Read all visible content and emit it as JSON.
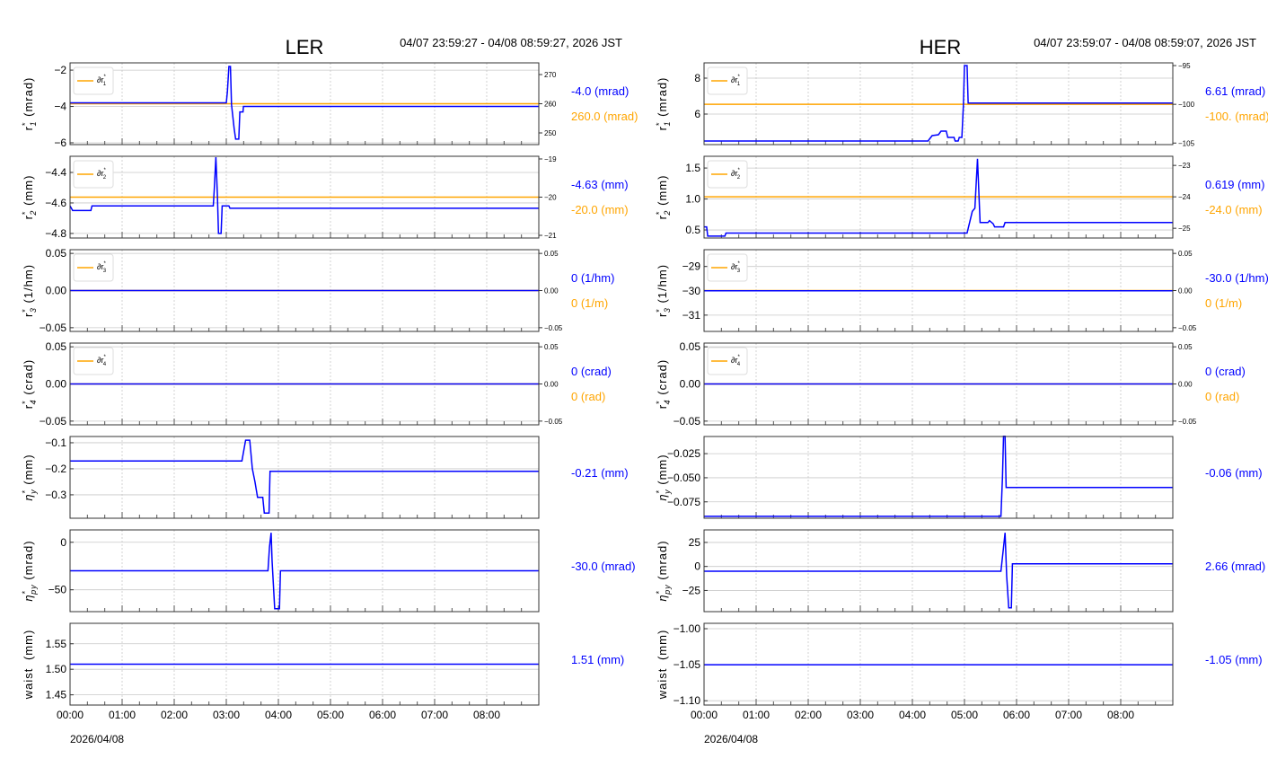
{
  "colors": {
    "measured": "#0000ff",
    "reference": "#ffa500",
    "grid": "#c8c8c8",
    "axis": "#333333"
  },
  "x_axis": {
    "unit": "hours",
    "xlim": [
      0,
      9
    ],
    "ticks": [
      0,
      1,
      2,
      3,
      4,
      5,
      6,
      7,
      8
    ],
    "tick_labels": [
      "00:00",
      "01:00",
      "02:00",
      "03:00",
      "04:00",
      "05:00",
      "06:00",
      "07:00",
      "08:00"
    ],
    "date_label": "2026/04/08"
  },
  "rings": [
    {
      "title": "LER",
      "range": "04/07 23:59:27 - 04/08 08:59:27, 2026 JST"
    },
    {
      "title": "HER",
      "range": "04/07 23:59:07 - 04/08 08:59:07, 2026 JST"
    }
  ],
  "chart_data": [
    {
      "ring": "LER",
      "type": "line",
      "ylabel": {
        "base": "r",
        "sup": "*",
        "sub": "1",
        "unit": "(mrad)"
      },
      "ylim": [
        -6.1,
        -1.6
      ],
      "yticks": [
        -6,
        -4,
        -2
      ],
      "ytick_labels": [
        "−6",
        "−4",
        "−2"
      ],
      "series": [
        [
          0,
          -3.8
        ],
        [
          3.0,
          -3.8
        ],
        [
          3.02,
          -3.2
        ],
        [
          3.05,
          -1.8
        ],
        [
          3.08,
          -1.8
        ],
        [
          3.1,
          -3.9
        ],
        [
          3.15,
          -5.2
        ],
        [
          3.18,
          -5.8
        ],
        [
          3.24,
          -5.8
        ],
        [
          3.26,
          -4.3
        ],
        [
          3.32,
          -4.3
        ],
        [
          3.33,
          -4.0
        ],
        [
          9,
          -4.0
        ]
      ],
      "reference": {
        "name": "∂r",
        "sub": "1",
        "value": 260,
        "ylim": [
          246,
          274
        ],
        "yticks": [
          250,
          260,
          270
        ]
      },
      "value_label": "-4.0 (mrad)",
      "ref_label": "260.0 (mrad)"
    },
    {
      "ring": "LER",
      "type": "line",
      "ylabel": {
        "base": "r",
        "sup": "*",
        "sub": "2",
        "unit": "(mm)"
      },
      "ylim": [
        -4.83,
        -4.294
      ],
      "yticks": [
        -4.8,
        -4.6,
        -4.4
      ],
      "ytick_labels": [
        "−4.8",
        "−4.6",
        "−4.4"
      ],
      "series": [
        [
          0,
          -4.62
        ],
        [
          0.05,
          -4.65
        ],
        [
          0.4,
          -4.65
        ],
        [
          0.42,
          -4.62
        ],
        [
          2.75,
          -4.62
        ],
        [
          2.77,
          -4.5
        ],
        [
          2.8,
          -4.3
        ],
        [
          2.83,
          -4.55
        ],
        [
          2.85,
          -4.8
        ],
        [
          2.9,
          -4.8
        ],
        [
          2.92,
          -4.62
        ],
        [
          3.05,
          -4.62
        ],
        [
          3.07,
          -4.635
        ],
        [
          9,
          -4.635
        ]
      ],
      "reference": {
        "name": "∂r",
        "sub": "2",
        "value": -20,
        "ylim": [
          -21.07,
          -18.93
        ],
        "yticks": [
          -21,
          -20,
          -19
        ]
      },
      "value_label": "-4.63 (mm)",
      "ref_label": "-20.0 (mm)"
    },
    {
      "ring": "LER",
      "type": "line",
      "ylabel": {
        "base": "r",
        "sup": "*",
        "sub": "3",
        "unit": "(1/hm)"
      },
      "ylim": [
        -0.055,
        0.055
      ],
      "yticks": [
        -0.05,
        0,
        0.05
      ],
      "ytick_labels": [
        "−0.05",
        "0.00",
        "0.05"
      ],
      "series": [
        [
          0,
          0
        ],
        [
          9,
          0
        ]
      ],
      "reference": {
        "name": "∂r",
        "sub": "3",
        "value": 0,
        "ylim": [
          -0.055,
          0.055
        ],
        "yticks": [
          -0.05,
          0,
          0.05
        ],
        "ytick_labels": [
          "−0.05",
          "0.00",
          "0.05"
        ]
      },
      "value_label": "0 (1/hm)",
      "ref_label": "0 (1/m)"
    },
    {
      "ring": "LER",
      "type": "line",
      "ylabel": {
        "base": "r",
        "sup": "*",
        "sub": "4",
        "unit": "(crad)"
      },
      "ylim": [
        -0.055,
        0.055
      ],
      "yticks": [
        -0.05,
        0,
        0.05
      ],
      "ytick_labels": [
        "−0.05",
        "0.00",
        "0.05"
      ],
      "series": [
        [
          0,
          0
        ],
        [
          9,
          0
        ]
      ],
      "reference": {
        "name": "∂r",
        "sub": "4",
        "value": 0,
        "ylim": [
          -0.055,
          0.055
        ],
        "yticks": [
          -0.05,
          0,
          0.05
        ],
        "ytick_labels": [
          "−0.05",
          "0.00",
          "0.05"
        ]
      },
      "value_label": "0 (crad)",
      "ref_label": "0 (rad)"
    },
    {
      "ring": "LER",
      "type": "line",
      "ylabel": {
        "base": "η",
        "sup": "*",
        "sub": "y",
        "unit": "(mm)"
      },
      "ylim": [
        -0.39,
        -0.076
      ],
      "yticks": [
        -0.3,
        -0.2,
        -0.1
      ],
      "ytick_labels": [
        "−0.3",
        "−0.2",
        "−0.1"
      ],
      "series": [
        [
          0,
          -0.17
        ],
        [
          3.3,
          -0.17
        ],
        [
          3.37,
          -0.09
        ],
        [
          3.45,
          -0.09
        ],
        [
          3.5,
          -0.2
        ],
        [
          3.55,
          -0.25
        ],
        [
          3.6,
          -0.31
        ],
        [
          3.7,
          -0.31
        ],
        [
          3.73,
          -0.37
        ],
        [
          3.82,
          -0.37
        ],
        [
          3.84,
          -0.21
        ],
        [
          9,
          -0.21
        ]
      ],
      "value_label": "-0.21 (mm)"
    },
    {
      "ring": "LER",
      "type": "line",
      "ylabel": {
        "base": "η",
        "sup": "*",
        "sub": "py",
        "unit": "(mrad)"
      },
      "ylim": [
        -73,
        13
      ],
      "yticks": [
        -50,
        0
      ],
      "ytick_labels": [
        "−50",
        "0"
      ],
      "series": [
        [
          0,
          -30
        ],
        [
          3.8,
          -30
        ],
        [
          3.83,
          -5
        ],
        [
          3.86,
          10
        ],
        [
          3.88,
          -20
        ],
        [
          3.93,
          -70
        ],
        [
          4.02,
          -70
        ],
        [
          4.04,
          -30
        ],
        [
          9,
          -30
        ]
      ],
      "value_label": "-30.0 (mrad)"
    },
    {
      "ring": "LER",
      "type": "line",
      "ylabel": {
        "base": "waist",
        "sup": "",
        "sub": "",
        "unit": "(mm)"
      },
      "ylim": [
        1.43,
        1.59
      ],
      "yticks": [
        1.45,
        1.5,
        1.55
      ],
      "ytick_labels": [
        "1.45",
        "1.50",
        "1.55"
      ],
      "series": [
        [
          0,
          1.51
        ],
        [
          9,
          1.51
        ]
      ],
      "value_label": "1.51 (mm)"
    },
    {
      "ring": "HER",
      "type": "line",
      "ylabel": {
        "base": "r",
        "sup": "*",
        "sub": "1",
        "unit": "(mrad)"
      },
      "ylim": [
        4.3,
        8.85
      ],
      "yticks": [
        6,
        8
      ],
      "ytick_labels": [
        "6",
        "8"
      ],
      "series": [
        [
          0,
          4.5
        ],
        [
          4.3,
          4.5
        ],
        [
          4.38,
          4.8
        ],
        [
          4.5,
          4.85
        ],
        [
          4.55,
          5.05
        ],
        [
          4.65,
          5.05
        ],
        [
          4.68,
          4.7
        ],
        [
          4.8,
          4.7
        ],
        [
          4.82,
          4.5
        ],
        [
          4.88,
          4.5
        ],
        [
          4.9,
          4.7
        ],
        [
          4.95,
          4.7
        ],
        [
          4.98,
          6.5
        ],
        [
          5.0,
          8.7
        ],
        [
          5.05,
          8.7
        ],
        [
          5.07,
          6.61
        ],
        [
          9,
          6.61
        ]
      ],
      "reference": {
        "name": "∂r",
        "sub": "1",
        "value": -100,
        "ylim": [
          -105.2,
          -94.65
        ],
        "yticks": [
          -105,
          -100,
          -95
        ]
      },
      "value_label": "6.61 (mrad)",
      "ref_label": "-100. (mrad)"
    },
    {
      "ring": "HER",
      "type": "line",
      "ylabel": {
        "base": "r",
        "sup": "*",
        "sub": "2",
        "unit": "(mm)"
      },
      "ylim": [
        0.37,
        1.69
      ],
      "yticks": [
        0.5,
        1.0,
        1.5
      ],
      "ytick_labels": [
        "0.5",
        "1.0",
        "1.5"
      ],
      "series": [
        [
          0,
          0.55
        ],
        [
          0.05,
          0.55
        ],
        [
          0.07,
          0.4
        ],
        [
          0.4,
          0.4
        ],
        [
          0.42,
          0.45
        ],
        [
          5.05,
          0.45
        ],
        [
          5.15,
          0.8
        ],
        [
          5.2,
          0.85
        ],
        [
          5.25,
          1.65
        ],
        [
          5.3,
          0.62
        ],
        [
          5.45,
          0.62
        ],
        [
          5.48,
          0.65
        ],
        [
          5.55,
          0.6
        ],
        [
          5.58,
          0.55
        ],
        [
          5.75,
          0.55
        ],
        [
          5.78,
          0.619
        ],
        [
          9,
          0.619
        ]
      ],
      "reference": {
        "name": "∂r",
        "sub": "2",
        "value": -24,
        "ylim": [
          -25.31,
          -22.71
        ],
        "yticks": [
          -25,
          -24,
          -23
        ]
      },
      "value_label": "0.619 (mm)",
      "ref_label": "-24.0 (mm)"
    },
    {
      "ring": "HER",
      "type": "line",
      "ylabel": {
        "base": "r",
        "sup": "*",
        "sub": "3",
        "unit": "(1/hm)"
      },
      "ylim": [
        -31.67,
        -28.31
      ],
      "yticks": [
        -31,
        -30,
        -29
      ],
      "ytick_labels": [
        "−31",
        "−30",
        "−29"
      ],
      "series": [
        [
          0,
          -30
        ],
        [
          9,
          -30
        ]
      ],
      "reference": {
        "name": "∂r",
        "sub": "3",
        "value": 0,
        "ylim": [
          -0.055,
          0.055
        ],
        "yticks": [
          -0.05,
          0,
          0.05
        ],
        "ytick_labels": [
          "−0.05",
          "0.00",
          "0.05"
        ]
      },
      "value_label": "-30.0 (1/hm)",
      "ref_label": "0 (1/m)"
    },
    {
      "ring": "HER",
      "type": "line",
      "ylabel": {
        "base": "r",
        "sup": "*",
        "sub": "4",
        "unit": "(crad)"
      },
      "ylim": [
        -0.055,
        0.055
      ],
      "yticks": [
        -0.05,
        0,
        0.05
      ],
      "ytick_labels": [
        "−0.05",
        "0.00",
        "0.05"
      ],
      "series": [
        [
          0,
          0
        ],
        [
          9,
          0
        ]
      ],
      "reference": {
        "name": "∂r",
        "sub": "4",
        "value": 0,
        "ylim": [
          -0.055,
          0.055
        ],
        "yticks": [
          -0.05,
          0,
          0.05
        ],
        "ytick_labels": [
          "−0.05",
          "0.00",
          "0.05"
        ]
      },
      "value_label": "0 (crad)",
      "ref_label": "0 (rad)"
    },
    {
      "ring": "HER",
      "type": "line",
      "ylabel": {
        "base": "η",
        "sup": "*",
        "sub": "y",
        "unit": "(mm)"
      },
      "ylim": [
        -0.092,
        -0.0072
      ],
      "yticks": [
        -0.075,
        -0.05,
        -0.025
      ],
      "ytick_labels": [
        "−0.075",
        "−0.050",
        "−0.025"
      ],
      "series": [
        [
          0,
          -0.09
        ],
        [
          5.7,
          -0.09
        ],
        [
          5.73,
          -0.05
        ],
        [
          5.75,
          -0.007
        ],
        [
          5.78,
          -0.007
        ],
        [
          5.8,
          -0.06
        ],
        [
          9,
          -0.06
        ]
      ],
      "value_label": "-0.06 (mm)"
    },
    {
      "ring": "HER",
      "type": "line",
      "ylabel": {
        "base": "η",
        "sup": "*",
        "sub": "py",
        "unit": "(mrad)"
      },
      "ylim": [
        -47,
        38
      ],
      "yticks": [
        -25,
        0,
        25
      ],
      "ytick_labels": [
        "−25",
        "0",
        "25"
      ],
      "series": [
        [
          0,
          -5
        ],
        [
          5.7,
          -5
        ],
        [
          5.75,
          20
        ],
        [
          5.78,
          35
        ],
        [
          5.81,
          -10
        ],
        [
          5.85,
          -43
        ],
        [
          5.9,
          -43
        ],
        [
          5.92,
          2.66
        ],
        [
          9,
          2.66
        ]
      ],
      "value_label": "2.66 (mrad)"
    },
    {
      "ring": "HER",
      "type": "line",
      "ylabel": {
        "base": "waist",
        "sup": "",
        "sub": "",
        "unit": "(mm)"
      },
      "ylim": [
        -1.106,
        -0.9925
      ],
      "yticks": [
        -1.1,
        -1.05,
        -1.0
      ],
      "ytick_labels": [
        "−1.10",
        "−1.05",
        "−1.00"
      ],
      "series": [
        [
          0,
          -1.05
        ],
        [
          9,
          -1.05
        ]
      ],
      "value_label": "-1.05 (mm)"
    }
  ]
}
